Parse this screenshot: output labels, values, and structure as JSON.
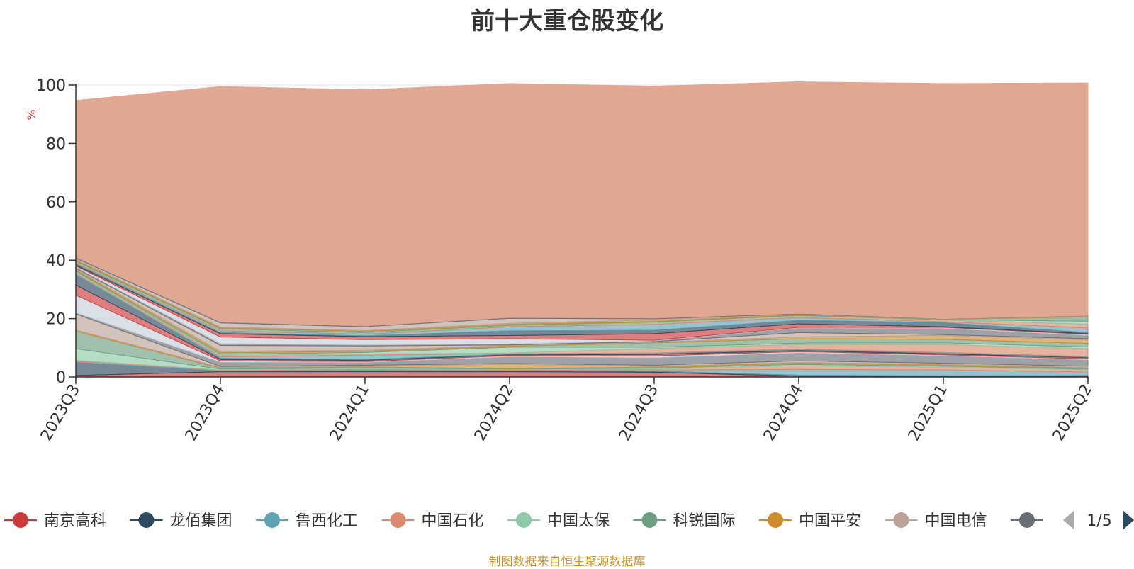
{
  "chart_data": {
    "type": "area",
    "stacked": true,
    "title": "前十大重仓股变化",
    "ylabel": "%",
    "ylim": [
      0,
      100
    ],
    "yticks": [
      0,
      20,
      40,
      60,
      80,
      100
    ],
    "categories": [
      "2023Q3",
      "2023Q4",
      "2024Q1",
      "2024Q2",
      "2024Q3",
      "2024Q4",
      "2025Q1",
      "2025Q2"
    ],
    "grid": true,
    "legend_position": "bottom",
    "legend_page": "1/5",
    "colors": [
      "#cc3b3b",
      "#2e4a5e",
      "#5fa3b0",
      "#da8a6e",
      "#90c9a8",
      "#6e9f82",
      "#cf8c2d",
      "#bba39a",
      "#6a6e75",
      "#c8d0da"
    ],
    "series": [
      {
        "name": "南京高科",
        "values": [
          0.5,
          1.8,
          1.8,
          1.8,
          1.6,
          0.3,
          0.2,
          0.2
        ]
      },
      {
        "name": "龙佰集团",
        "values": [
          4.5,
          0.2,
          0.4,
          0.3,
          0.4,
          0.3,
          0.2,
          0.3
        ]
      },
      {
        "name": "鲁西化工",
        "values": [
          0.4,
          0.2,
          0.3,
          0.2,
          0.4,
          2.0,
          2.0,
          1.2
        ]
      },
      {
        "name": "中国石化",
        "values": [
          0.3,
          0.2,
          0.3,
          0.2,
          0.3,
          1.3,
          1.0,
          0.7
        ]
      },
      {
        "name": "中国太保",
        "values": [
          4.0,
          0.3,
          0.3,
          0.2,
          0.3,
          0.4,
          0.3,
          0.3
        ]
      },
      {
        "name": "科锐国际",
        "values": [
          6.0,
          0.3,
          0.3,
          0.2,
          0.3,
          0.4,
          0.3,
          0.3
        ]
      },
      {
        "name": "中国平安",
        "values": [
          0.4,
          0.3,
          0.3,
          1.5,
          0.3,
          0.3,
          0.3,
          0.3
        ]
      },
      {
        "name": "中国电信",
        "values": [
          5.5,
          0.3,
          0.3,
          0.2,
          0.4,
          0.5,
          0.4,
          0.4
        ]
      },
      {
        "values": [
          0.4,
          1.5,
          1.0,
          2.4,
          2.6,
          2.8,
          2.6,
          2.2
        ]
      },
      {
        "values": [
          6.0,
          0.4,
          0.3,
          0.3,
          0.6,
          0.4,
          0.3,
          0.3
        ]
      },
      {
        "values": [
          3.5,
          0.5,
          0.4,
          0.3,
          0.5,
          0.3,
          0.3,
          0.4
        ]
      },
      {
        "values": [
          3.5,
          0.4,
          0.3,
          0.2,
          0.3,
          0.3,
          0.3,
          0.2
        ]
      },
      {
        "values": [
          0.4,
          0.5,
          1.5,
          0.2,
          0.2,
          0.3,
          0.2,
          0.2
        ]
      },
      {
        "values": [
          0.4,
          0.5,
          0.4,
          0.2,
          1.6,
          1.5,
          2.7,
          2.7
        ]
      },
      {
        "values": [
          0.4,
          0.4,
          0.5,
          2.0,
          0.4,
          0.5,
          0.6,
          0.6
        ]
      },
      {
        "values": [
          0.3,
          0.5,
          0.4,
          0.3,
          1.5,
          1.5,
          1.2,
          1.2
        ]
      },
      {
        "values": [
          0.4,
          0.5,
          0.3,
          0.3,
          0.2,
          0.6,
          1.3,
          1.3
        ]
      },
      {
        "values": [
          0.3,
          2.0,
          1.5,
          0.2,
          0.2,
          1.5,
          0.3,
          0.3
        ]
      },
      {
        "values": [
          0.4,
          0.6,
          0.4,
          0.3,
          0.3,
          1.6,
          2.2,
          1.2
        ]
      },
      {
        "values": [
          0.4,
          2.3,
          1.8,
          1.8,
          0.2,
          0.2,
          0.3,
          0.3
        ]
      },
      {
        "values": [
          0.3,
          1.1,
          1.0,
          1.1,
          2.2,
          1.2,
          0.2,
          0.2
        ]
      },
      {
        "values": [
          0.4,
          0.4,
          0.3,
          1.6,
          1.2,
          1.2,
          1.4,
          0.4
        ]
      },
      {
        "values": [
          0.3,
          0.6,
          0.5,
          1.4,
          2.0,
          1.0,
          0.3,
          1.6
        ]
      },
      {
        "values": [
          0.3,
          0.4,
          0.3,
          0.3,
          0.5,
          0.5,
          0.6,
          1.3
        ]
      },
      {
        "values": [
          0.3,
          0.3,
          0.3,
          0.2,
          0.3,
          0.2,
          0.1,
          1.0
        ]
      },
      {
        "values": [
          0.3,
          0.3,
          0.4,
          0.3,
          0.2,
          0.2,
          0.1,
          1.5
        ]
      },
      {
        "values": [
          0.4,
          0.3,
          0.3,
          0.4,
          0.5,
          0.2,
          0.1,
          0.3
        ]
      },
      {
        "values": [
          0.4,
          1.4,
          1.3,
          1.7,
          0.4,
          0.1,
          0.1,
          0.1
        ]
      },
      {
        "values": [
          0.4,
          0.4,
          0.3,
          0.3,
          0.3,
          0.2,
          0.1,
          0.1
        ]
      },
      {
        "values": [
          53.6,
          80.6,
          80.9,
          80.1,
          79.4,
          79.3,
          80.5,
          79.6
        ]
      }
    ]
  },
  "footer": {
    "source_note": "制图数据来自恒生聚源数据库"
  }
}
